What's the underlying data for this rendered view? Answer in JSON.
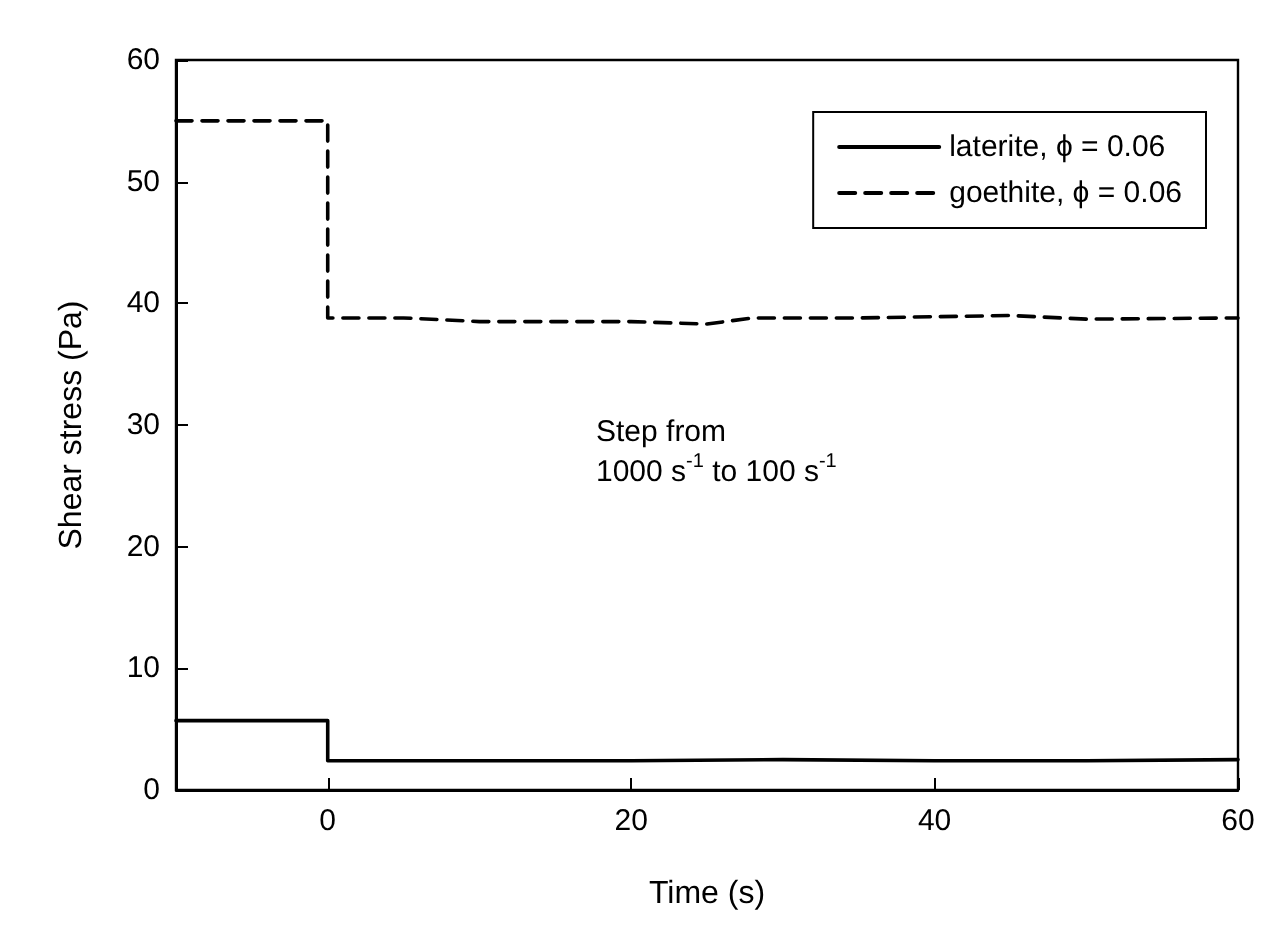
{
  "chart_data": {
    "type": "line",
    "xlabel": "Time (s)",
    "ylabel": "Shear stress (Pa)",
    "xlim": [
      -10,
      60
    ],
    "xticks": [
      0,
      20,
      40,
      60
    ],
    "ylim": [
      0,
      60
    ],
    "yticks": [
      0,
      10,
      20,
      30,
      40,
      50,
      60
    ],
    "grid": false,
    "legend": "top right",
    "marker": "none",
    "annotations": [
      "Step from\n1000 s$^{-1}$ to 100 s$^{-1}$"
    ],
    "series": [
      {
        "name": "laterite, ϕ = 0.06",
        "color": "#000000",
        "line_style": "solid",
        "x": [
          -10,
          0,
          0,
          10,
          20,
          30,
          40,
          50,
          60
        ],
        "values": [
          5.7,
          5.7,
          2.4,
          2.4,
          2.4,
          2.5,
          2.4,
          2.4,
          2.5
        ]
      },
      {
        "name": "goethite, ϕ = 0.06",
        "color": "#000000",
        "line_style": "dashed",
        "x": [
          -10,
          0,
          0,
          5,
          10,
          20,
          25,
          28,
          35,
          45,
          50,
          60
        ],
        "values": [
          55,
          55,
          38.8,
          38.8,
          38.5,
          38.5,
          38.3,
          38.8,
          38.8,
          39,
          38.7,
          38.8
        ]
      }
    ]
  }
}
